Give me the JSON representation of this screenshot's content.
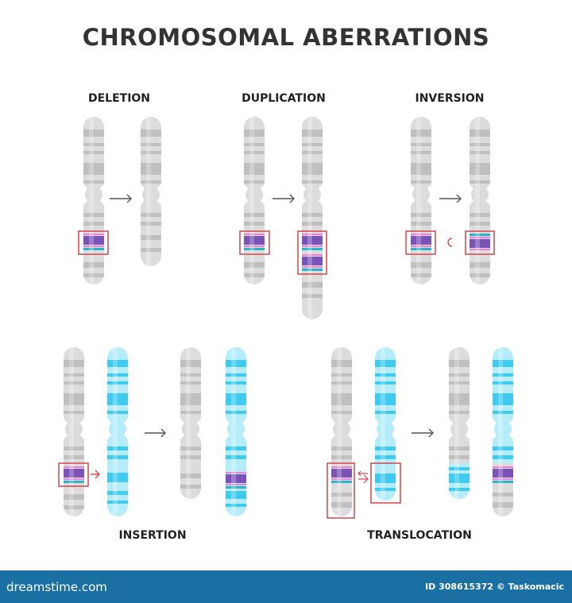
{
  "title": "CHROMOSOMAL ABERRATIONS",
  "labels": {
    "deletion": "DELETION",
    "duplication": "DUPLICATION",
    "inversion": "INVERSION",
    "insertion": "INSERTION",
    "translocation": "TRANSLOCATION"
  },
  "footer": {
    "brand": "dreamstime.com",
    "credit": "ID 308615372 © Taskomacic"
  },
  "colors": {
    "gray_base": "#dcdcdc",
    "gray_band": "#bfbfbf",
    "cyan_base": "#b5ecfa",
    "cyan_band": "#3fcaf0",
    "purple": "#7a52b8",
    "pink": "#ea7fdc",
    "teal": "#2ab3c9",
    "highlight_box": "#d0474a",
    "arrow": "#555555",
    "footer_bg": "#1a6fa3"
  }
}
